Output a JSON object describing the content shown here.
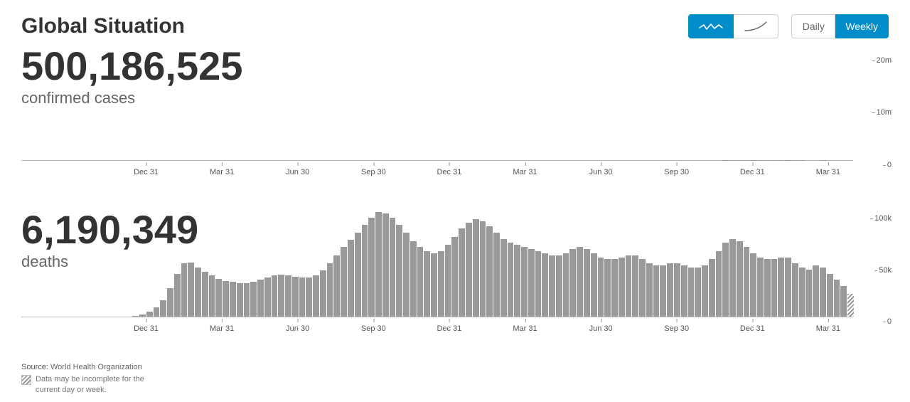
{
  "title": "Global Situation",
  "controls": {
    "mode_active": "weekly",
    "daily_label": "Daily",
    "weekly_label": "Weekly",
    "scale_active": "linear"
  },
  "footer": {
    "source_label": "Source:",
    "source_value": "World Health Organization",
    "note": "Data may be incomplete for the current day or week."
  },
  "colors": {
    "bar": "#999999",
    "accent": "#008dc9",
    "text_primary": "#333333",
    "text_secondary": "#666666",
    "axis": "#999999",
    "background": "#ffffff"
  },
  "x_axis": {
    "labels": [
      "Dec 31",
      "Mar 31",
      "Jun 30",
      "Sep 30",
      "Dec 31",
      "Mar 31",
      "Jun 30",
      "Sep 30",
      "Dec 31",
      "Mar 31"
    ],
    "n_bars": 120,
    "label_fontsize": 11,
    "label_color": "#555555"
  },
  "cases": {
    "value": "500,186,525",
    "label": "confirmed cases",
    "type": "bar",
    "y": {
      "min": 0,
      "max": 22000000,
      "ticks": [
        {
          "v": 0,
          "label": "0"
        },
        {
          "v": 10000000,
          "label": "10m"
        },
        {
          "v": 20000000,
          "label": "20m"
        }
      ],
      "label_fontsize": 11
    },
    "data": [
      0,
      0,
      0,
      0,
      0,
      0,
      0,
      0,
      0,
      0,
      0,
      0,
      0,
      0,
      0,
      0,
      0,
      30,
      50,
      80,
      140,
      220,
      320,
      420,
      540,
      600,
      620,
      640,
      660,
      680,
      720,
      780,
      880,
      1000,
      1150,
      1300,
      1500,
      1800,
      2200,
      2600,
      3000,
      3300,
      3500,
      3700,
      3900,
      4000,
      4200,
      4400,
      4500,
      4400,
      4200,
      4000,
      3800,
      3600,
      3400,
      3300,
      3400,
      3700,
      4200,
      4800,
      5400,
      5700,
      5600,
      5300,
      4900,
      4500,
      4200,
      4000,
      3800,
      3700,
      3800,
      4200,
      4800,
      5500,
      6000,
      5800,
      5400,
      4900,
      4400,
      4000,
      3700,
      3500,
      3400,
      3400,
      3500,
      3700,
      4000,
      4200,
      4400,
      4500,
      4400,
      4200,
      4000,
      3900,
      3800,
      3700,
      3600,
      3800,
      4600,
      6500,
      10000,
      15000,
      19500,
      22000,
      21500,
      20000,
      17500,
      15000,
      13200,
      12600,
      13000,
      11500,
      10800,
      10200,
      10000,
      11300,
      10400,
      9800,
      8200,
      6500
    ],
    "incomplete_last_n": 1
  },
  "deaths": {
    "value": "6,190,349",
    "label": "deaths",
    "type": "bar",
    "y": {
      "min": 0,
      "max": 105000,
      "ticks": [
        {
          "v": 0,
          "label": "0"
        },
        {
          "v": 50000,
          "label": "50k"
        },
        {
          "v": 100000,
          "label": "100k"
        }
      ],
      "label_fontsize": 11
    },
    "data": [
      0,
      0,
      0,
      0,
      0,
      0,
      0,
      0,
      0,
      0,
      0,
      0,
      0,
      0,
      0,
      0,
      500,
      2000,
      5000,
      9000,
      16000,
      28000,
      42000,
      52000,
      53000,
      48000,
      44000,
      40000,
      37000,
      35000,
      34000,
      33000,
      33000,
      34000,
      36000,
      38000,
      40000,
      41000,
      40000,
      39000,
      38000,
      38000,
      40000,
      45000,
      52000,
      60000,
      68000,
      75000,
      82000,
      90000,
      97000,
      102000,
      101000,
      97000,
      90000,
      82000,
      74000,
      68000,
      64000,
      62000,
      64000,
      70000,
      78000,
      86000,
      92000,
      95000,
      93000,
      88000,
      82000,
      76000,
      72000,
      70000,
      68000,
      66000,
      64000,
      62000,
      60000,
      60000,
      62000,
      66000,
      68000,
      66000,
      62000,
      58000,
      56000,
      56000,
      58000,
      60000,
      60000,
      56000,
      52000,
      50000,
      50000,
      52000,
      52000,
      50000,
      48000,
      48000,
      50000,
      56000,
      64000,
      72000,
      76000,
      74000,
      68000,
      62000,
      58000,
      56000,
      56000,
      58000,
      58000,
      52000,
      48000,
      46000,
      50000,
      48000,
      42000,
      36000,
      30000,
      22000
    ],
    "incomplete_last_n": 1
  }
}
